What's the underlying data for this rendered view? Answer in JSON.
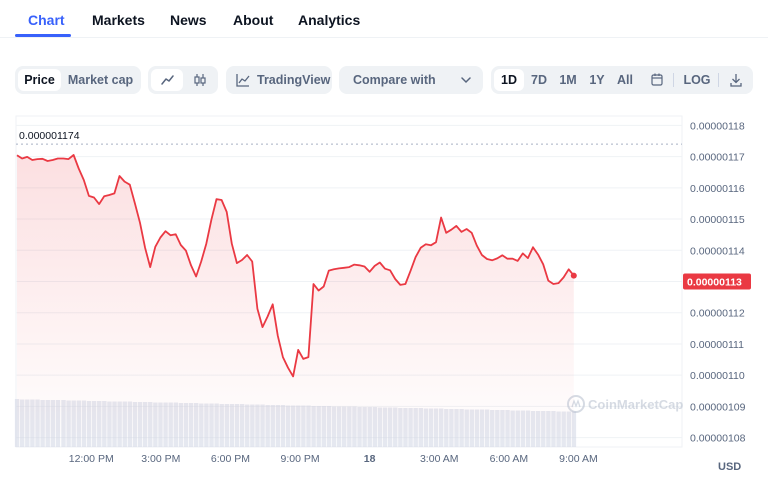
{
  "nav": {
    "tabs": [
      {
        "label": "Chart",
        "active": true
      },
      {
        "label": "Markets"
      },
      {
        "label": "News"
      },
      {
        "label": "About"
      },
      {
        "label": "Analytics"
      }
    ]
  },
  "toolbar": {
    "price_label": "Price",
    "market_cap_label": "Market cap",
    "line_icon": "line-chart-icon",
    "candle_icon": "candlestick-icon",
    "tradingview_label": "TradingView",
    "tradingview_icon": "trend-line-icon",
    "compare_label": "Compare with",
    "compare_icon": "chevron-down-icon",
    "ranges": [
      "1D",
      "7D",
      "1M",
      "1Y",
      "All"
    ],
    "selected_range": "1D",
    "calendar_icon": "calendar-icon",
    "log_label": "LOG",
    "download_icon": "download-icon"
  },
  "watermark": "CoinMarketCap",
  "currency_label": "USD",
  "colors": {
    "accent": "#3861fb",
    "line": "#ea3943",
    "price_tag": "#ea3943",
    "volume": "#cfd6e4"
  },
  "chart_data": {
    "type": "area",
    "y_axis_ticks": [
      "0.00000118",
      "0.00000117",
      "0.00000116",
      "0.00000115",
      "0.00000114",
      "0.00000113",
      "0.00000112",
      "0.00000111",
      "0.00000110",
      "0.00000109",
      "0.00000108"
    ],
    "x_axis_ticks": [
      "12:00 PM",
      "3:00 PM",
      "6:00 PM",
      "9:00 PM",
      "18",
      "3:00 AM",
      "6:00 AM",
      "9:00 AM"
    ],
    "ylim": [
      1.077e-06,
      1.183e-06
    ],
    "high_label": "0.000001174",
    "high_value": 1.174e-06,
    "current_price_label": "0.00000113",
    "current_price_value": 1.13e-06,
    "x_hours": [
      0,
      0.22,
      0.44,
      0.66,
      0.88,
      1.1,
      1.32,
      1.54,
      1.76,
      2.0,
      2.22,
      2.44,
      2.66,
      2.88,
      3.1,
      3.32,
      3.54,
      3.76,
      3.98,
      4.2,
      4.42,
      4.64,
      4.86,
      5.08,
      5.3,
      5.52,
      5.74,
      5.96,
      6.18,
      6.4,
      6.62,
      6.84,
      7.06,
      7.28,
      7.5,
      7.72,
      7.94,
      8.16,
      8.38,
      8.6,
      8.82,
      9.04,
      9.26,
      9.48,
      9.7,
      9.92,
      10.14,
      10.36,
      10.58,
      10.8,
      11.02,
      11.24,
      11.46,
      11.68,
      11.9,
      12.12,
      12.34,
      12.56,
      12.78,
      13.0,
      13.22,
      13.44,
      13.66,
      13.88,
      14.1,
      14.32,
      14.54,
      14.76,
      14.98,
      15.2,
      15.42,
      15.64,
      15.86,
      16.08,
      16.3,
      16.52,
      16.74,
      16.96,
      17.18,
      17.4,
      17.62,
      17.84,
      18.06,
      18.28,
      18.5,
      18.72,
      18.94,
      19.16,
      19.38,
      19.6,
      19.82,
      20.04,
      20.26,
      20.48,
      20.7,
      20.92,
      21.14,
      21.36,
      21.58,
      21.8,
      22.02,
      22.24,
      22.46,
      22.68,
      22.9,
      23.12,
      23.34,
      23.56,
      23.78,
      24.0
    ],
    "prices": [
      1.1704,
      1.1694,
      1.1699,
      1.1689,
      1.1692,
      1.1693,
      1.1686,
      1.1689,
      1.1694,
      1.1694,
      1.1692,
      1.1705,
      1.1662,
      1.1625,
      1.1574,
      1.1569,
      1.1548,
      1.1573,
      1.1577,
      1.1582,
      1.1638,
      1.162,
      1.161,
      1.155,
      1.1488,
      1.1408,
      1.1346,
      1.1411,
      1.1441,
      1.1461,
      1.1448,
      1.1451,
      1.1417,
      1.1399,
      1.1352,
      1.1316,
      1.1364,
      1.1421,
      1.1498,
      1.1564,
      1.1561,
      1.1523,
      1.1421,
      1.1359,
      1.1369,
      1.1385,
      1.1364,
      1.1213,
      1.1154,
      1.1188,
      1.1227,
      1.1126,
      1.1058,
      1.1024,
      1.0996,
      1.1081,
      1.1052,
      1.1058,
      1.1292,
      1.1271,
      1.1284,
      1.1335,
      1.1339,
      1.1342,
      1.1344,
      1.1346,
      1.1354,
      1.1352,
      1.1348,
      1.1331,
      1.135,
      1.1361,
      1.1341,
      1.1336,
      1.1308,
      1.1289,
      1.1292,
      1.1334,
      1.1378,
      1.1408,
      1.1419,
      1.1416,
      1.1426,
      1.1505,
      1.1456,
      1.1466,
      1.1478,
      1.1459,
      1.1468,
      1.1456,
      1.1415,
      1.1385,
      1.1372,
      1.1368,
      1.1374,
      1.1384,
      1.1373,
      1.1373,
      1.1366,
      1.139,
      1.1375,
      1.141,
      1.1386,
      1.1355,
      1.1303,
      1.1292,
      1.1295,
      1.1313,
      1.1339,
      1.1319
    ],
    "volume": [
      0.96,
      0.95,
      0.95,
      0.95,
      0.95,
      0.94,
      0.94,
      0.94,
      0.94,
      0.94,
      0.93,
      0.93,
      0.93,
      0.93,
      0.92,
      0.92,
      0.92,
      0.92,
      0.91,
      0.91,
      0.91,
      0.91,
      0.91,
      0.9,
      0.9,
      0.9,
      0.9,
      0.89,
      0.89,
      0.89,
      0.89,
      0.89,
      0.88,
      0.88,
      0.88,
      0.88,
      0.87,
      0.87,
      0.87,
      0.87,
      0.86,
      0.86,
      0.86,
      0.86,
      0.86,
      0.85,
      0.85,
      0.85,
      0.85,
      0.84,
      0.84,
      0.84,
      0.84,
      0.83,
      0.83,
      0.83,
      0.83,
      0.83,
      0.82,
      0.82,
      0.82,
      0.82,
      0.81,
      0.81,
      0.81,
      0.81,
      0.81,
      0.8,
      0.8,
      0.8,
      0.8,
      0.79,
      0.79,
      0.79,
      0.79,
      0.78,
      0.78,
      0.78,
      0.78,
      0.78,
      0.77,
      0.77,
      0.77,
      0.77,
      0.76,
      0.76,
      0.76,
      0.76,
      0.75,
      0.75,
      0.75,
      0.75,
      0.75,
      0.74,
      0.74,
      0.74,
      0.74,
      0.73,
      0.73,
      0.73,
      0.73,
      0.72,
      0.72,
      0.72,
      0.72,
      0.72,
      0.71,
      0.71,
      0.71,
      0.71
    ]
  }
}
